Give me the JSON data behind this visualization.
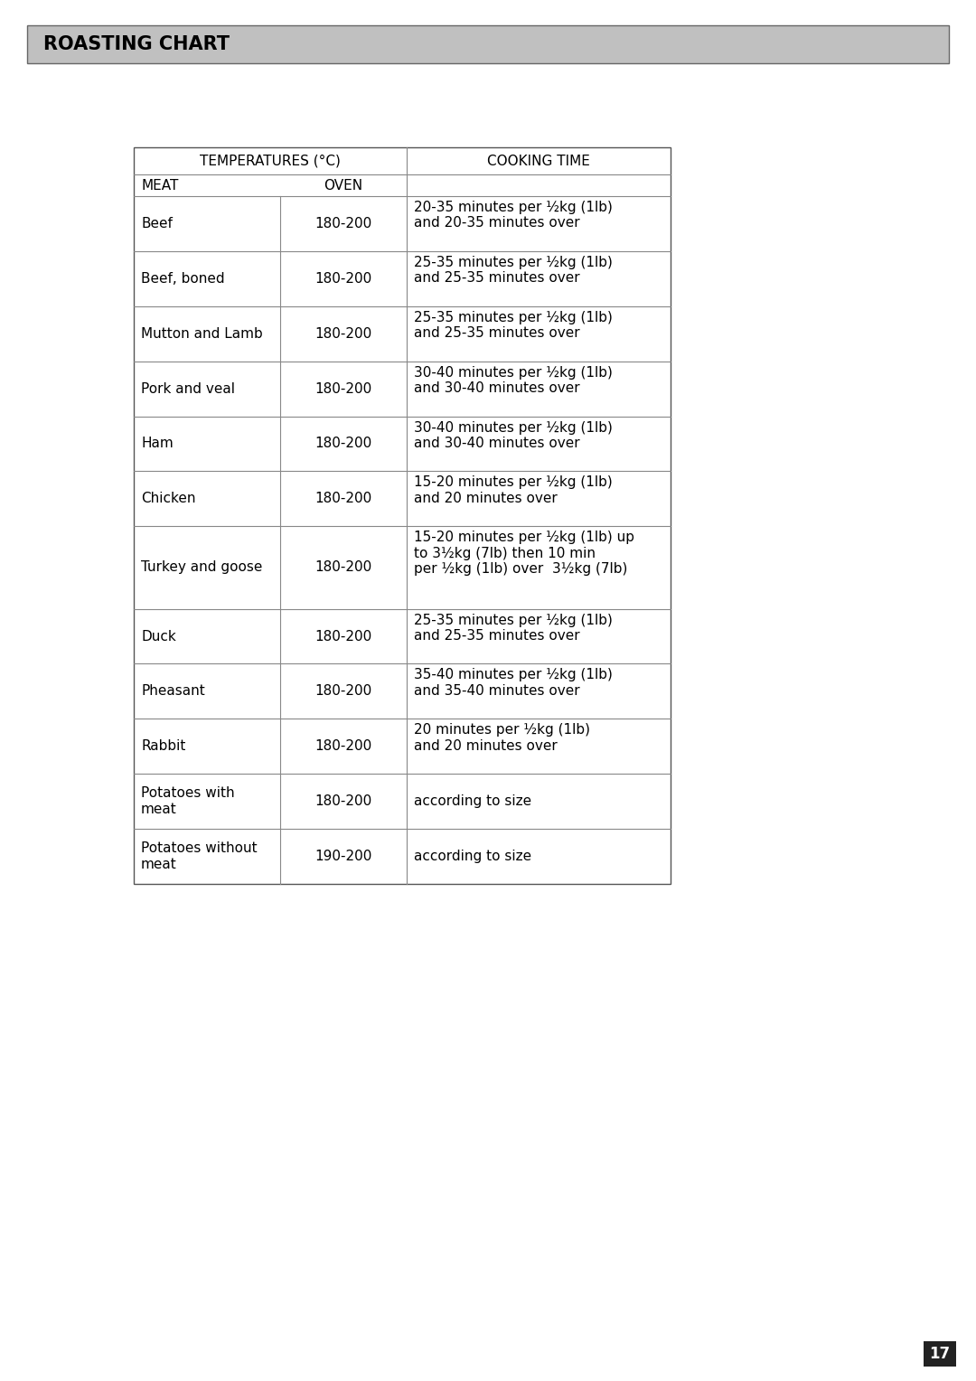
{
  "title": "ROASTING CHART",
  "title_bg": "#c0c0c0",
  "title_color": "#000000",
  "page_number": "17",
  "col_headers": [
    "TEMPERATURES (°C)",
    "COOKING TIME"
  ],
  "sub_headers": [
    "MEAT",
    "OVEN"
  ],
  "rows": [
    {
      "meat": "Beef",
      "oven": "180-200",
      "time": "20-35 minutes per ½kg (1lb)\nand 20-35 minutes over",
      "meat_lines": 1,
      "time_lines": 2
    },
    {
      "meat": "Beef, boned",
      "oven": "180-200",
      "time": "25-35 minutes per ½kg (1lb)\nand 25-35 minutes over",
      "meat_lines": 1,
      "time_lines": 2
    },
    {
      "meat": "Mutton and Lamb",
      "oven": "180-200",
      "time": "25-35 minutes per ½kg (1lb)\nand 25-35 minutes over",
      "meat_lines": 1,
      "time_lines": 2
    },
    {
      "meat": "Pork and veal",
      "oven": "180-200",
      "time": "30-40 minutes per ½kg (1lb)\nand 30-40 minutes over",
      "meat_lines": 1,
      "time_lines": 2
    },
    {
      "meat": "Ham",
      "oven": "180-200",
      "time": "30-40 minutes per ½kg (1lb)\nand 30-40 minutes over",
      "meat_lines": 1,
      "time_lines": 2
    },
    {
      "meat": "Chicken",
      "oven": "180-200",
      "time": "15-20 minutes per ½kg (1lb)\nand 20 minutes over",
      "meat_lines": 1,
      "time_lines": 2
    },
    {
      "meat": "Turkey and goose",
      "oven": "180-200",
      "time": "15-20 minutes per ½kg (1lb) up\nto 3½kg (7lb) then 10 min\nper ½kg (1lb) over  3½kg (7lb)",
      "meat_lines": 1,
      "time_lines": 3
    },
    {
      "meat": "Duck",
      "oven": "180-200",
      "time": "25-35 minutes per ½kg (1lb)\nand 25-35 minutes over",
      "meat_lines": 1,
      "time_lines": 2
    },
    {
      "meat": "Pheasant",
      "oven": "180-200",
      "time": "35-40 minutes per ½kg (1lb)\nand 35-40 minutes over",
      "meat_lines": 1,
      "time_lines": 2
    },
    {
      "meat": "Rabbit",
      "oven": "180-200",
      "time": "20 minutes per ½kg (1lb)\nand 20 minutes over",
      "meat_lines": 1,
      "time_lines": 2
    },
    {
      "meat": "Potatoes with\nmeat",
      "oven": "180-200",
      "time": "according to size",
      "meat_lines": 2,
      "time_lines": 1
    },
    {
      "meat": "Potatoes without\nmeat",
      "oven": "190-200",
      "time": "according to size",
      "meat_lines": 2,
      "time_lines": 1
    }
  ],
  "line_color": "#888888",
  "font_size": 11.0,
  "header_font_size": 11.0
}
